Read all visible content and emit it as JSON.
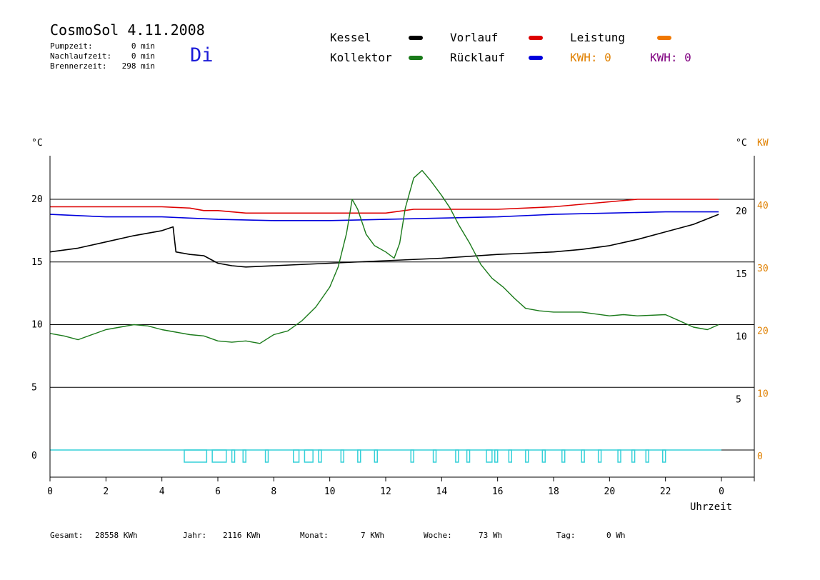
{
  "header": {
    "title": "CosmoSol 4.11.2008",
    "stats": [
      {
        "label": "Pumpzeit:",
        "value": "0 min"
      },
      {
        "label": "Nachlaufzeit:",
        "value": "0 min"
      },
      {
        "label": "Brennerzeit:",
        "value": "298 min"
      }
    ],
    "day": "Di"
  },
  "legend": {
    "kessel": {
      "label": "Kessel",
      "color": "#000000"
    },
    "kollektor": {
      "label": "Kollektor",
      "color": "#1a7a1a"
    },
    "vorlauf": {
      "label": "Vorlauf",
      "color": "#dd0000"
    },
    "ruecklauf": {
      "label": "Rücklauf",
      "color": "#0000dd"
    },
    "leistung": {
      "label": "Leistung",
      "color": "#f07800"
    },
    "kwh1": {
      "label": "KWH: 0",
      "color": "#e08000"
    },
    "kwh2": {
      "label": "KWH: 0",
      "color": "#800080"
    }
  },
  "footer": {
    "gesamt": {
      "label": "Gesamt:",
      "value": "28558 KWh"
    },
    "jahr": {
      "label": "Jahr:",
      "value": "2116 KWh"
    },
    "monat": {
      "label": "Monat:",
      "value": "7 KWh"
    },
    "woche": {
      "label": "Woche:",
      "value": "73 Wh"
    },
    "tag": {
      "label": "Tag:",
      "value": "0 Wh"
    }
  },
  "chart_data": {
    "type": "line",
    "xlabel": "Uhrzeit",
    "ylabel_left": "°C",
    "ylabel_right_c": "°C",
    "ylabel_right_kw": "KW",
    "xlim": [
      0,
      24
    ],
    "ylim": [
      -2,
      25
    ],
    "x_ticks": [
      "0",
      "2",
      "4",
      "6",
      "8",
      "10",
      "12",
      "14",
      "16",
      "18",
      "20",
      "22",
      "0"
    ],
    "y_ticks_left": [
      "0",
      "5",
      "10",
      "15",
      "20"
    ],
    "y_ticks_right_c": [
      "5",
      "10",
      "15",
      "20"
    ],
    "y_ticks_right_kw": [
      "0",
      "10",
      "20",
      "30",
      "40"
    ],
    "gridlines_y": [
      0,
      5,
      10,
      15,
      20
    ],
    "series": [
      {
        "name": "Vorlauf",
        "color": "#dd0000",
        "x": [
          0,
          2,
          3,
          4,
          5,
          5.5,
          6,
          7,
          8,
          10,
          12,
          13,
          14,
          16,
          18,
          19,
          20,
          21,
          22,
          23.9
        ],
        "y": [
          19.4,
          19.4,
          19.4,
          19.4,
          19.3,
          19.1,
          19.1,
          18.9,
          18.9,
          18.9,
          18.9,
          19.2,
          19.2,
          19.2,
          19.4,
          19.6,
          19.8,
          20,
          20,
          20
        ]
      },
      {
        "name": "Rücklauf",
        "color": "#0000dd",
        "x": [
          0,
          2,
          4,
          6,
          8,
          10,
          12,
          14,
          16,
          18,
          20,
          22,
          23.9
        ],
        "y": [
          18.8,
          18.6,
          18.6,
          18.4,
          18.3,
          18.3,
          18.4,
          18.5,
          18.6,
          18.8,
          18.9,
          19.0,
          19.0
        ]
      },
      {
        "name": "Kessel",
        "color": "#000000",
        "x": [
          0,
          1,
          2,
          3,
          4,
          4.4,
          4.5,
          5,
          5.5,
          6,
          6.5,
          7,
          8,
          10,
          12,
          14,
          16,
          17,
          18,
          19,
          20,
          21,
          22,
          23,
          23.9
        ],
        "y": [
          15.8,
          16.1,
          16.6,
          17.1,
          17.5,
          17.8,
          15.8,
          15.6,
          15.5,
          14.9,
          14.7,
          14.6,
          14.7,
          14.9,
          15.1,
          15.3,
          15.6,
          15.7,
          15.8,
          16.0,
          16.3,
          16.8,
          17.4,
          18.0,
          18.8
        ]
      },
      {
        "name": "Kollektor",
        "color": "#1a7a1a",
        "x": [
          0,
          0.5,
          1,
          1.5,
          2,
          2.5,
          3,
          3.5,
          4,
          4.5,
          5,
          5.5,
          6,
          6.5,
          7,
          7.5,
          8,
          8.5,
          9,
          9.5,
          10,
          10.3,
          10.6,
          10.8,
          11,
          11.3,
          11.6,
          12,
          12.3,
          12.5,
          12.7,
          13,
          13.3,
          13.6,
          14,
          14.3,
          14.6,
          15,
          15.4,
          15.8,
          16.2,
          16.6,
          17,
          17.5,
          18,
          19,
          20,
          20.5,
          21,
          22,
          22.5,
          23,
          23.5,
          23.9
        ],
        "y": [
          9.3,
          9.1,
          8.8,
          9.2,
          9.6,
          9.8,
          10.0,
          9.9,
          9.6,
          9.4,
          9.2,
          9.1,
          8.7,
          8.6,
          8.7,
          8.5,
          9.2,
          9.5,
          10.3,
          11.4,
          13.0,
          14.6,
          17.3,
          20.0,
          19.2,
          17.2,
          16.3,
          15.8,
          15.3,
          16.5,
          19.3,
          21.7,
          22.3,
          21.5,
          20.3,
          19.3,
          18.0,
          16.5,
          14.8,
          13.7,
          13.0,
          12.1,
          11.3,
          11.1,
          11.0,
          11.0,
          10.7,
          10.8,
          10.7,
          10.8,
          10.3,
          9.8,
          9.6,
          10.0
        ]
      }
    ],
    "burner_segments": [
      [
        4.8,
        5.6
      ],
      [
        5.8,
        6.3
      ],
      [
        6.5,
        6.6
      ],
      [
        6.9,
        7.0
      ],
      [
        7.7,
        7.8
      ],
      [
        8.7,
        8.9
      ],
      [
        9.1,
        9.4
      ],
      [
        9.6,
        9.7
      ],
      [
        10.4,
        10.5
      ],
      [
        11.0,
        11.1
      ],
      [
        11.6,
        11.7
      ],
      [
        12.9,
        13.0
      ],
      [
        13.7,
        13.8
      ],
      [
        14.5,
        14.6
      ],
      [
        14.9,
        15.0
      ],
      [
        15.6,
        15.8
      ],
      [
        15.9,
        16.0
      ],
      [
        16.4,
        16.5
      ],
      [
        17.0,
        17.1
      ],
      [
        17.6,
        17.7
      ],
      [
        18.3,
        18.4
      ],
      [
        19.0,
        19.1
      ],
      [
        19.6,
        19.7
      ],
      [
        20.3,
        20.4
      ],
      [
        20.8,
        20.9
      ],
      [
        21.3,
        21.4
      ],
      [
        21.9,
        22.0
      ]
    ]
  }
}
